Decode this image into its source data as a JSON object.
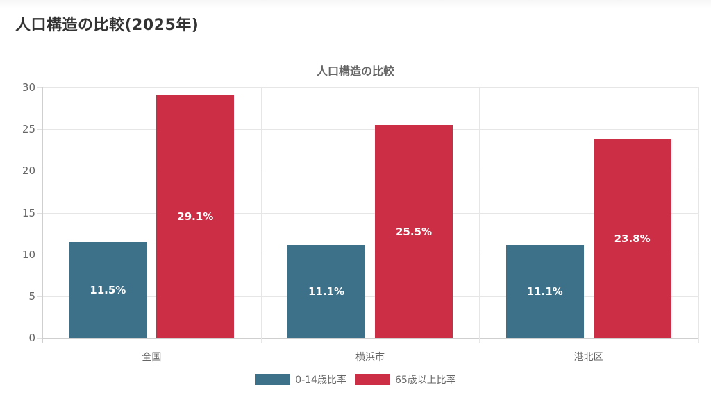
{
  "page": {
    "title": "人口構造の比較(2025年)"
  },
  "chart_data": {
    "type": "bar",
    "title": "人口構造の比較",
    "categories": [
      "全国",
      "横浜市",
      "港北区"
    ],
    "series": [
      {
        "name": "0-14歳比率",
        "color": "#3d718a",
        "values": [
          11.5,
          11.1,
          11.1
        ],
        "labels": [
          "11.5%",
          "11.1%",
          "11.1%"
        ]
      },
      {
        "name": "65歳以上比率",
        "color": "#cc2f45",
        "values": [
          29.1,
          25.5,
          23.8
        ],
        "labels": [
          "29.1%",
          "25.5%",
          "23.8%"
        ]
      }
    ],
    "xlabel": "",
    "ylabel": "",
    "ylim": [
      0,
      30
    ],
    "yticks": [
      "0",
      "5",
      "10",
      "15",
      "20",
      "25",
      "30"
    ],
    "grid": true,
    "legend_position": "bottom"
  }
}
